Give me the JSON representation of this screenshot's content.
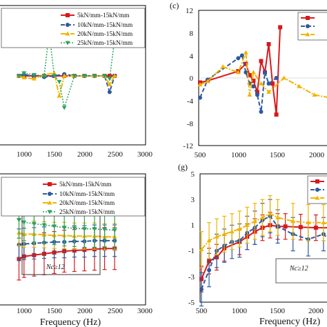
{
  "panel_letters": {
    "c": "(c)",
    "g": "(g)"
  },
  "xlabel": "Frequency (Hz)",
  "annotation": "Nc≥12",
  "legend_labels": [
    "5kN/mm-15kN/mm",
    "10kN/mm-15kN/mm",
    "20kN/mm-15kN/mm",
    "25kN/mm-15kN/mm"
  ],
  "colors": {
    "s5": "#d7191c",
    "s10": "#2c5aa0",
    "s20": "#f0b400",
    "s25": "#2ca25f"
  },
  "chart_data": [
    {
      "id": "top-left",
      "type": "line",
      "xlim": [
        0,
        3000
      ],
      "ylim": [
        -12,
        12
      ],
      "xticks": [
        1000,
        1500,
        2000,
        2500,
        3000
      ],
      "series": [
        {
          "name": "5kN/mm-15kN/mm",
          "x": [
            500,
            600,
            800,
            1000,
            1200,
            1400,
            1600,
            1800,
            2000,
            2200,
            2300,
            2400
          ],
          "y": [
            0,
            0,
            0,
            0,
            0,
            0,
            0,
            0,
            0,
            0,
            0,
            0
          ]
        },
        {
          "name": "10kN/mm-15kN/mm",
          "x": [
            500,
            600,
            800,
            1000,
            1200,
            1400,
            1600,
            1800,
            2000,
            2200,
            2300,
            2400
          ],
          "y": [
            0,
            0.2,
            0,
            -0.2,
            0,
            0.3,
            0,
            0,
            0,
            0,
            -2.8,
            0
          ]
        },
        {
          "name": "20kN/mm-15kN/mm",
          "x": [
            500,
            600,
            800,
            1000,
            1200,
            1300,
            1400,
            1600,
            1800,
            2000,
            2200,
            2300,
            2400
          ],
          "y": [
            0,
            -0.3,
            -0.5,
            0.2,
            0.5,
            -3.5,
            0,
            0,
            0,
            0,
            0,
            -1.5,
            0
          ]
        },
        {
          "name": "25kN/mm-15kN/mm",
          "x": [
            500,
            600,
            800,
            1000,
            1100,
            1200,
            1300,
            1400,
            1600,
            1800,
            2000,
            2200,
            2300,
            2400
          ],
          "y": [
            0,
            0.5,
            0.2,
            0,
            7.5,
            0,
            -1,
            -5.5,
            0,
            0,
            0,
            0,
            -0.5,
            6.5
          ]
        }
      ]
    },
    {
      "id": "c",
      "type": "line",
      "xlim": [
        500,
        2200
      ],
      "ylim": [
        -12,
        12
      ],
      "yticks": [
        -12,
        -8,
        -4,
        0,
        4,
        8,
        12
      ],
      "xticks": [
        500,
        1000,
        1500,
        2000
      ],
      "series": [
        {
          "name": "5kN/mm-15kN/mm",
          "x": [
            500,
            600,
            1000,
            1100,
            1150,
            1200,
            1250,
            1300,
            1350,
            1400,
            1450,
            1500,
            1550
          ],
          "y": [
            -0.8,
            -0.5,
            1.2,
            2.5,
            0.5,
            -0.5,
            -2.5,
            3,
            1,
            6,
            -1,
            -6.5,
            9
          ]
        },
        {
          "name": "10kN/mm-15kN/mm",
          "x": [
            500,
            600,
            1000,
            1050,
            1100,
            1150,
            1200,
            1250,
            1300,
            1350,
            1400,
            1500
          ],
          "y": [
            -3.5,
            -0.3,
            3.5,
            4,
            1,
            -1,
            -1.5,
            -3,
            -6,
            1,
            -1,
            0
          ]
        },
        {
          "name": "20kN/mm-15kN/mm",
          "x": [
            500,
            600,
            800,
            1000,
            1100,
            1150,
            1200,
            1300,
            1400,
            1600,
            1800,
            2000,
            2200
          ],
          "y": [
            -1.2,
            -0.6,
            2,
            1,
            4.5,
            -3,
            1,
            -1,
            -2.5,
            0,
            -1.5,
            -3,
            -3.5
          ]
        }
      ]
    },
    {
      "id": "bottom-left",
      "type": "line",
      "xlim": [
        0,
        3000
      ],
      "ylim": [
        -5,
        5
      ],
      "xticks": [
        1000,
        1500,
        2000,
        2500,
        3000
      ],
      "series": [
        {
          "name": "5kN/mm-15kN/mm",
          "x": [
            500,
            600,
            800,
            1000,
            1200,
            1400,
            1600,
            1800,
            2000,
            2200,
            2400
          ],
          "y": [
            -1.5,
            -1.3,
            -1.2,
            -1.1,
            -1.0,
            -0.9,
            -0.85,
            -0.8,
            -0.75,
            -0.7,
            -0.7
          ]
        },
        {
          "name": "10kN/mm-15kN/mm",
          "x": [
            500,
            600,
            800,
            1000,
            1200,
            1400,
            1600,
            1800,
            2000,
            2200,
            2400
          ],
          "y": [
            -0.4,
            -0.35,
            -0.3,
            -0.25,
            -0.2,
            -0.2,
            -0.15,
            -0.15,
            -0.1,
            -0.1,
            -0.1
          ]
        },
        {
          "name": "20kN/mm-15kN/mm",
          "x": [
            500,
            600,
            800,
            1000,
            1200,
            1400,
            1600,
            1800,
            2000,
            2200,
            2400
          ],
          "y": [
            0.5,
            0.4,
            0.4,
            0.35,
            0.3,
            0.3,
            0.25,
            0.25,
            0.25,
            0.2,
            0.2
          ]
        },
        {
          "name": "25kN/mm-15kN/mm",
          "x": [
            500,
            600,
            800,
            1000,
            1200,
            1400,
            1600,
            1800,
            2000,
            2200,
            2400
          ],
          "y": [
            1.5,
            1.3,
            1.2,
            1.1,
            1.0,
            0.9,
            0.85,
            0.8,
            0.8,
            0.75,
            0.7
          ]
        }
      ]
    },
    {
      "id": "g",
      "type": "line",
      "xlim": [
        500,
        2200
      ],
      "ylim": [
        -5,
        5
      ],
      "yticks": [
        -5,
        -3,
        -1,
        1,
        3,
        5
      ],
      "xticks": [
        500,
        1000,
        1500,
        2000
      ],
      "series": [
        {
          "name": "5kN/mm-15kN/mm",
          "x": [
            500,
            600,
            700,
            800,
            1000,
            1100,
            1200,
            1300,
            1400,
            1500,
            1600,
            1800,
            2000,
            2200
          ],
          "y": [
            -3.2,
            -1.8,
            -1.5,
            -0.8,
            -0.3,
            0.1,
            0.5,
            0.8,
            1.0,
            0.9,
            0.9,
            0.85,
            0.8,
            0.8
          ]
        },
        {
          "name": "10kN/mm-15kN/mm",
          "x": [
            500,
            600,
            700,
            800,
            900,
            1000,
            1100,
            1200,
            1300,
            1400,
            1500,
            1700,
            1900,
            2100,
            2200
          ],
          "y": [
            -4.0,
            -2.5,
            -1.0,
            -0.6,
            -0.3,
            -0.2,
            0.4,
            0.8,
            1.4,
            1.7,
            0.9,
            0.3,
            -0.1,
            0.3,
            -0.3
          ]
        },
        {
          "name": "20kN/mm-15kN/mm",
          "x": [
            500,
            600,
            700,
            800,
            900,
            1000,
            1100,
            1200,
            1300,
            1400,
            1500,
            1700,
            1900,
            2100,
            2200
          ],
          "y": [
            -0.9,
            -0.2,
            0.1,
            0.3,
            0.5,
            0.7,
            1.0,
            1.3,
            1.6,
            1.9,
            1.6,
            1.3,
            1.2,
            1.2,
            1.1
          ]
        }
      ]
    }
  ]
}
